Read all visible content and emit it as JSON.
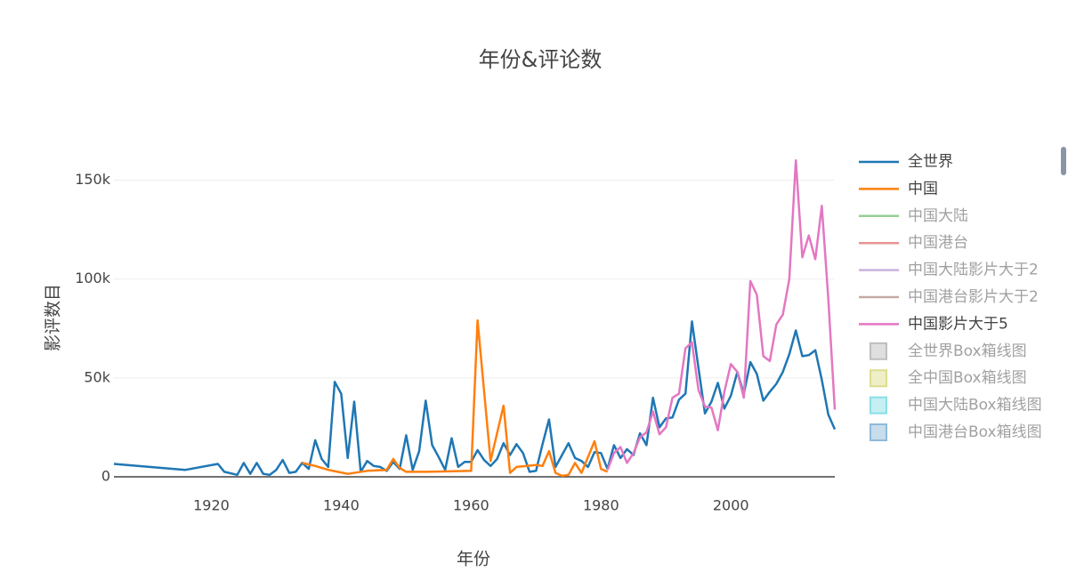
{
  "chart_data": {
    "type": "line",
    "title": "年份&评论数",
    "x_label": "年份",
    "y_label": "影评数目",
    "xlim": [
      1905,
      2016
    ],
    "ylim": [
      0,
      161000
    ],
    "xticks": [
      1920,
      1940,
      1960,
      1980,
      2000
    ],
    "yticks": [
      0,
      {
        "value": 50000,
        "label": "50k"
      },
      {
        "value": 100000,
        "label": "100k"
      },
      {
        "value": 150000,
        "label": "150k"
      }
    ],
    "grid": true,
    "legend": "right",
    "series": [
      {
        "name": "全世界",
        "color": "#1f77b4",
        "x": [
          1905,
          1916,
          1921,
          1922,
          1924,
          1925,
          1926,
          1927,
          1928,
          1929,
          1930,
          1931,
          1932,
          1933,
          1934,
          1935,
          1936,
          1937,
          1938,
          1939,
          1940,
          1941,
          1942,
          1943,
          1944,
          1945,
          1946,
          1947,
          1948,
          1949,
          1950,
          1951,
          1952,
          1953,
          1954,
          1955,
          1956,
          1957,
          1958,
          1959,
          1960,
          1961,
          1962,
          1963,
          1964,
          1965,
          1966,
          1967,
          1968,
          1969,
          1970,
          1971,
          1972,
          1973,
          1974,
          1975,
          1976,
          1977,
          1978,
          1979,
          1980,
          1981,
          1982,
          1983,
          1984,
          1985,
          1986,
          1987,
          1988,
          1989,
          1990,
          1991,
          1992,
          1993,
          1994,
          1995,
          1996,
          1997,
          1998,
          1999,
          2000,
          2001,
          2002,
          2003,
          2004,
          2005,
          2006,
          2007,
          2008,
          2009,
          2010,
          2011,
          2012,
          2013,
          2014,
          2015,
          2016
        ],
        "values": [
          6500,
          3500,
          6500,
          2500,
          1000,
          7000,
          1500,
          7000,
          1500,
          1000,
          3500,
          8500,
          2000,
          2500,
          7000,
          4000,
          18500,
          9000,
          5000,
          48000,
          42000,
          9500,
          38000,
          2500,
          8000,
          5500,
          5000,
          3000,
          7500,
          4000,
          21000,
          3500,
          13000,
          38500,
          16000,
          10000,
          3500,
          19500,
          5000,
          7500,
          7500,
          13500,
          8500,
          5500,
          9000,
          17000,
          11000,
          16500,
          12000,
          2500,
          3000,
          16500,
          29000,
          5000,
          11000,
          17000,
          9500,
          8000,
          5000,
          12500,
          12000,
          4000,
          16000,
          9500,
          14000,
          11000,
          22000,
          16000,
          40000,
          25000,
          29500,
          30000,
          39000,
          42000,
          78500,
          55000,
          32000,
          38000,
          47500,
          34500,
          41000,
          53000,
          42000,
          58000,
          52000,
          38500,
          43000,
          47000,
          53000,
          62000,
          74000,
          61000,
          61500,
          64000,
          49000,
          31500,
          24000
        ]
      },
      {
        "name": "中国",
        "color": "#ff7f0e",
        "x": [
          1934,
          1936,
          1938,
          1941,
          1944,
          1947,
          1948,
          1949,
          1950,
          1953,
          1960,
          1961,
          1963,
          1965,
          1966,
          1967,
          1970,
          1971,
          1972,
          1973,
          1974,
          1975,
          1976,
          1977,
          1979,
          1980,
          1981
        ],
        "values": [
          7000,
          5500,
          3500,
          1500,
          3000,
          3500,
          9000,
          4500,
          2500,
          2500,
          3000,
          79000,
          8000,
          36000,
          2000,
          5000,
          6000,
          5500,
          13000,
          2000,
          500,
          1000,
          7000,
          2000,
          18000,
          4000,
          2500
        ]
      },
      {
        "name": "中国大陆",
        "color": "#2ca02c",
        "visible": "legendonly"
      },
      {
        "name": "中国港台",
        "color": "#d62728",
        "visible": "legendonly"
      },
      {
        "name": "中国大陆影片大于2",
        "color": "#9467bd",
        "visible": "legendonly"
      },
      {
        "name": "中国港台影片大于2",
        "color": "#8c564b",
        "visible": "legendonly"
      },
      {
        "name": "中国影片大于5",
        "color": "#e377c2",
        "x": [
          1981,
          1982,
          1983,
          1984,
          1985,
          1986,
          1987,
          1988,
          1989,
          1990,
          1991,
          1992,
          1993,
          1994,
          1995,
          1996,
          1997,
          1998,
          1999,
          2000,
          2001,
          2002,
          2003,
          2004,
          2005,
          2006,
          2007,
          2008,
          2009,
          2010,
          2011,
          2012,
          2013,
          2014,
          2015,
          2016
        ],
        "values": [
          3500,
          12000,
          15000,
          7000,
          12000,
          20000,
          22500,
          33000,
          21500,
          25000,
          40000,
          42000,
          65000,
          68000,
          44000,
          35500,
          35000,
          23500,
          43000,
          57000,
          53000,
          40000,
          99000,
          92000,
          61000,
          58500,
          77000,
          82000,
          100000,
          160000,
          111000,
          122000,
          110000,
          137000,
          90000,
          34000
        ]
      },
      {
        "name": "全世界Box箱线图",
        "color": "#7f7f7f",
        "visible": "legendonly",
        "kind": "box"
      },
      {
        "name": "全中国Box箱线图",
        "color": "#bcbd22",
        "visible": "legendonly",
        "kind": "box"
      },
      {
        "name": "中国大陆Box箱线图",
        "color": "#17becf",
        "visible": "legendonly",
        "kind": "box"
      },
      {
        "name": "中国港台Box箱线图",
        "color": "#1f77b4",
        "visible": "legendonly",
        "kind": "box"
      }
    ]
  }
}
